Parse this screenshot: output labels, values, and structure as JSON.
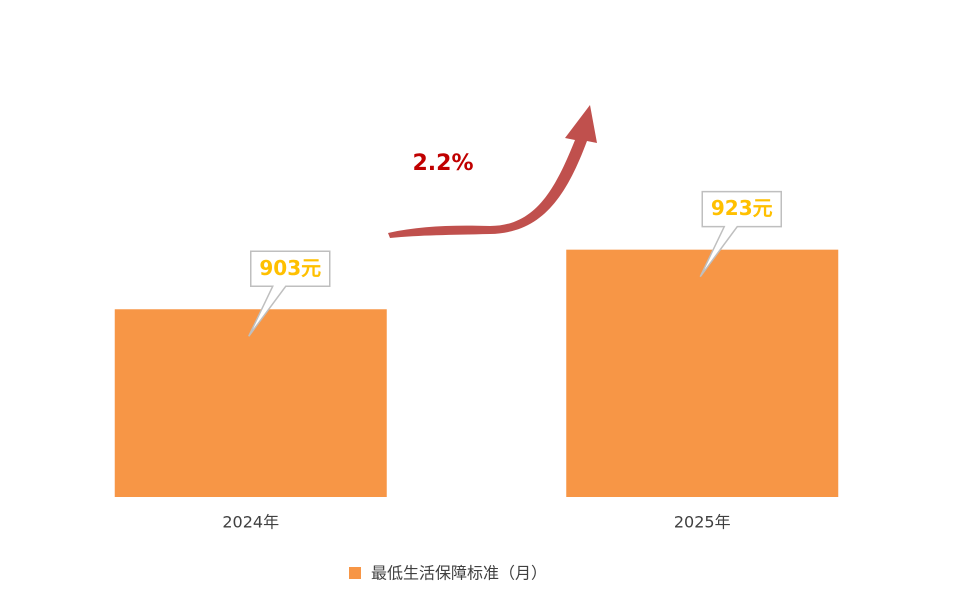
{
  "chart_data": {
    "type": "bar",
    "categories": [
      "2024年",
      "2025年"
    ],
    "series": [
      {
        "name": "最低生活保障标准（月）",
        "color": "#f79646",
        "values": [
          903,
          923
        ],
        "value_labels": [
          "903元",
          "923元"
        ]
      }
    ],
    "ylim": [
      840,
      990
    ],
    "annotation": "2.2%",
    "legend": "bottom"
  }
}
